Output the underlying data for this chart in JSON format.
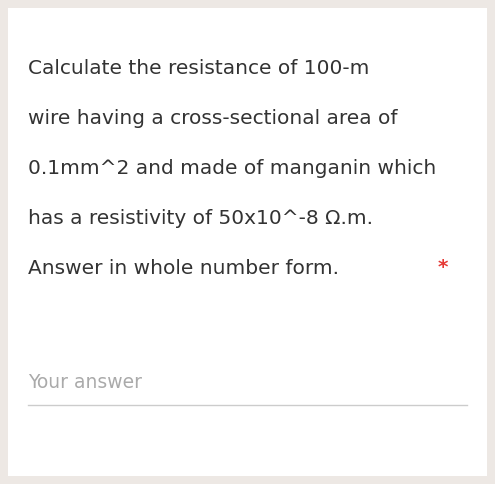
{
  "background_color": "#ede8e4",
  "inner_background": "#ffffff",
  "line1": "Calculate the resistance of 100-m",
  "line2": "wire having a cross-sectional area of",
  "line3": "0.1mm^2 and made of manganin which",
  "line4": "has a resistivity of 50x10^-8 Ω.m.",
  "line5_main": "Answer in whole number form. ",
  "line5_star": "*",
  "your_answer_label": "Your answer",
  "text_color": "#333333",
  "star_color": "#e53935",
  "your_answer_color": "#aaaaaa",
  "line_color": "#cccccc",
  "font_size_main": 14.5,
  "font_size_your_answer": 13.5,
  "font_family": "DejaVu Sans"
}
